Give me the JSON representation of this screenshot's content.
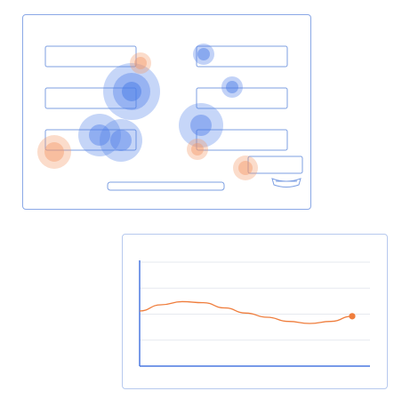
{
  "colors": {
    "outline": "#8aa8e6",
    "field_stroke": "#7d9fe2",
    "cool_spot": "#4f7fe8",
    "warm_spot": "#f39a6b",
    "grid": "#e6e9ef",
    "axis": "#4a78e0",
    "curve": "#ef7d3c"
  },
  "form": {
    "fields": [
      {
        "id": "field-left-1"
      },
      {
        "id": "field-left-2"
      },
      {
        "id": "field-left-3"
      },
      {
        "id": "field-right-1"
      },
      {
        "id": "field-right-2"
      },
      {
        "id": "field-right-3"
      },
      {
        "id": "field-right-4"
      }
    ],
    "bottom_bar": {
      "id": "long-bar"
    },
    "icon": {
      "name": "mouse-pointer-icon"
    }
  },
  "heatmap": {
    "cool_spots": 8,
    "warm_spots": 5
  },
  "chart_data": {
    "type": "line",
    "title": "",
    "xlabel": "",
    "ylabel": "",
    "grid": true,
    "x": [
      0,
      1,
      2,
      3,
      4,
      5,
      6,
      7,
      8,
      9,
      10
    ],
    "series": [
      {
        "values": [
          5.3,
          5.9,
          6.2,
          6.1,
          5.6,
          5.1,
          4.7,
          4.3,
          4.1,
          4.3,
          4.8
        ]
      }
    ],
    "ylim": [
      0,
      10
    ],
    "end_marker": true
  }
}
